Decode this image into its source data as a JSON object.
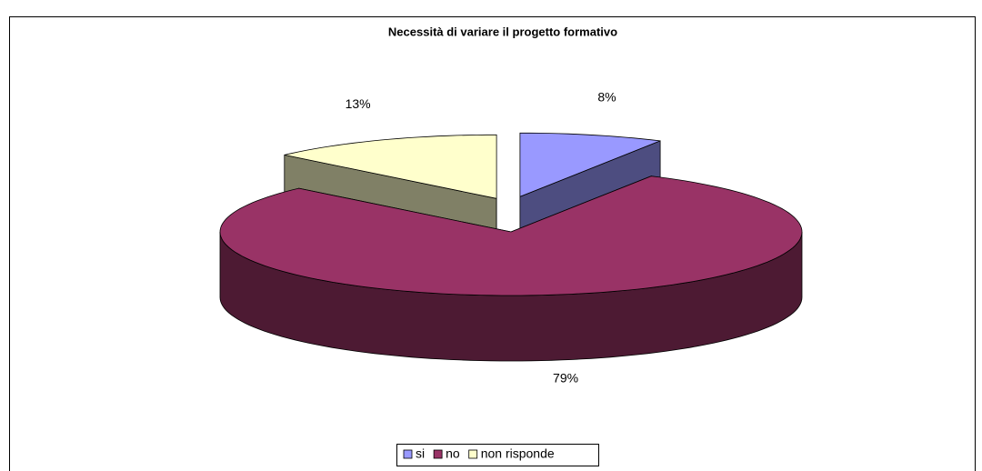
{
  "chart_data": {
    "type": "pie3d",
    "title": "Necessità di variare il progetto formativo",
    "categories": [
      "si",
      "no",
      "non risponde"
    ],
    "values": [
      8,
      79,
      13
    ],
    "value_labels": [
      "8%",
      "79%",
      "13%"
    ],
    "colors": [
      "#9999ff",
      "#993366",
      "#ffffcc"
    ],
    "legend": "bottom"
  }
}
